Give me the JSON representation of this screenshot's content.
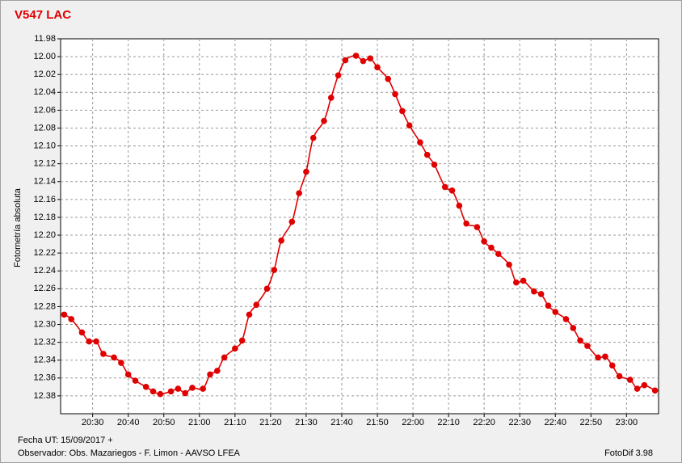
{
  "chart_data": {
    "type": "line",
    "title": "V547 LAC",
    "ylabel": "Fotometría absoluta",
    "footer_date": "Fecha UT: 15/09/2017 +",
    "footer_observer": "Observador: Obs. Mazariegos - F. Limon - AAVSO LFEA",
    "footer_software": "FotoDif 3.98",
    "x": [
      "20:22",
      "20:24",
      "20:27",
      "20:29",
      "20:31",
      "20:33",
      "20:36",
      "20:38",
      "20:40",
      "20:42",
      "20:45",
      "20:47",
      "20:49",
      "20:52",
      "20:54",
      "20:56",
      "20:58",
      "21:01",
      "21:03",
      "21:05",
      "21:07",
      "21:10",
      "21:12",
      "21:14",
      "21:16",
      "21:19",
      "21:21",
      "21:23",
      "21:26",
      "21:28",
      "21:30",
      "21:32",
      "21:35",
      "21:37",
      "21:39",
      "21:41",
      "21:44",
      "21:46",
      "21:48",
      "21:50",
      "21:53",
      "21:55",
      "21:57",
      "21:59",
      "22:02",
      "22:04",
      "22:06",
      "22:09",
      "22:11",
      "22:13",
      "22:15",
      "22:18",
      "22:20",
      "22:22",
      "22:24",
      "22:27",
      "22:29",
      "22:31",
      "22:34",
      "22:36",
      "22:38",
      "22:40",
      "22:43",
      "22:45",
      "22:47",
      "22:49",
      "22:52",
      "22:54",
      "22:56",
      "22:58",
      "23:01",
      "23:03",
      "23:05",
      "23:08"
    ],
    "series": [
      {
        "color": "#e00000",
        "values": [
          12.289,
          12.294,
          12.309,
          12.319,
          12.319,
          12.333,
          12.337,
          12.343,
          12.356,
          12.363,
          12.37,
          12.375,
          12.378,
          12.375,
          12.372,
          12.377,
          12.371,
          12.372,
          12.356,
          12.352,
          12.337,
          12.327,
          12.318,
          12.289,
          12.278,
          12.26,
          12.239,
          12.206,
          12.185,
          12.153,
          12.129,
          12.091,
          12.072,
          12.046,
          12.021,
          12.004,
          11.999,
          12.005,
          12.002,
          12.012,
          12.025,
          12.042,
          12.061,
          12.077,
          12.096,
          12.11,
          12.121,
          12.146,
          12.15,
          12.167,
          12.187,
          12.191,
          12.207,
          12.214,
          12.221,
          12.233,
          12.253,
          12.251,
          12.263,
          12.266,
          12.279,
          12.286,
          12.294,
          12.304,
          12.318,
          12.324,
          12.337,
          12.336,
          12.346,
          12.358,
          12.362,
          12.372,
          12.368,
          12.374
        ]
      }
    ],
    "xlim": [
      "20:21",
      "23:09"
    ],
    "xticks": [
      "20:30",
      "20:40",
      "20:50",
      "21:00",
      "21:10",
      "21:20",
      "21:30",
      "21:40",
      "21:50",
      "22:00",
      "22:10",
      "22:20",
      "22:30",
      "22:40",
      "22:50",
      "23:00"
    ],
    "ylim": [
      11.98,
      12.4
    ],
    "y_inverted": true,
    "yticks": [
      11.98,
      {
        "value": 12,
        "label": "12.00"
      },
      12.02,
      12.04,
      12.06,
      12.08,
      {
        "value": 12.1,
        "label": "12.10"
      },
      12.12,
      12.14,
      12.16,
      12.18,
      {
        "value": 12.2,
        "label": "12.20"
      },
      12.22,
      12.24,
      12.26,
      12.28,
      {
        "value": 12.3,
        "label": "12.30"
      },
      12.32,
      12.34,
      12.36,
      12.38
    ],
    "grid": true
  }
}
